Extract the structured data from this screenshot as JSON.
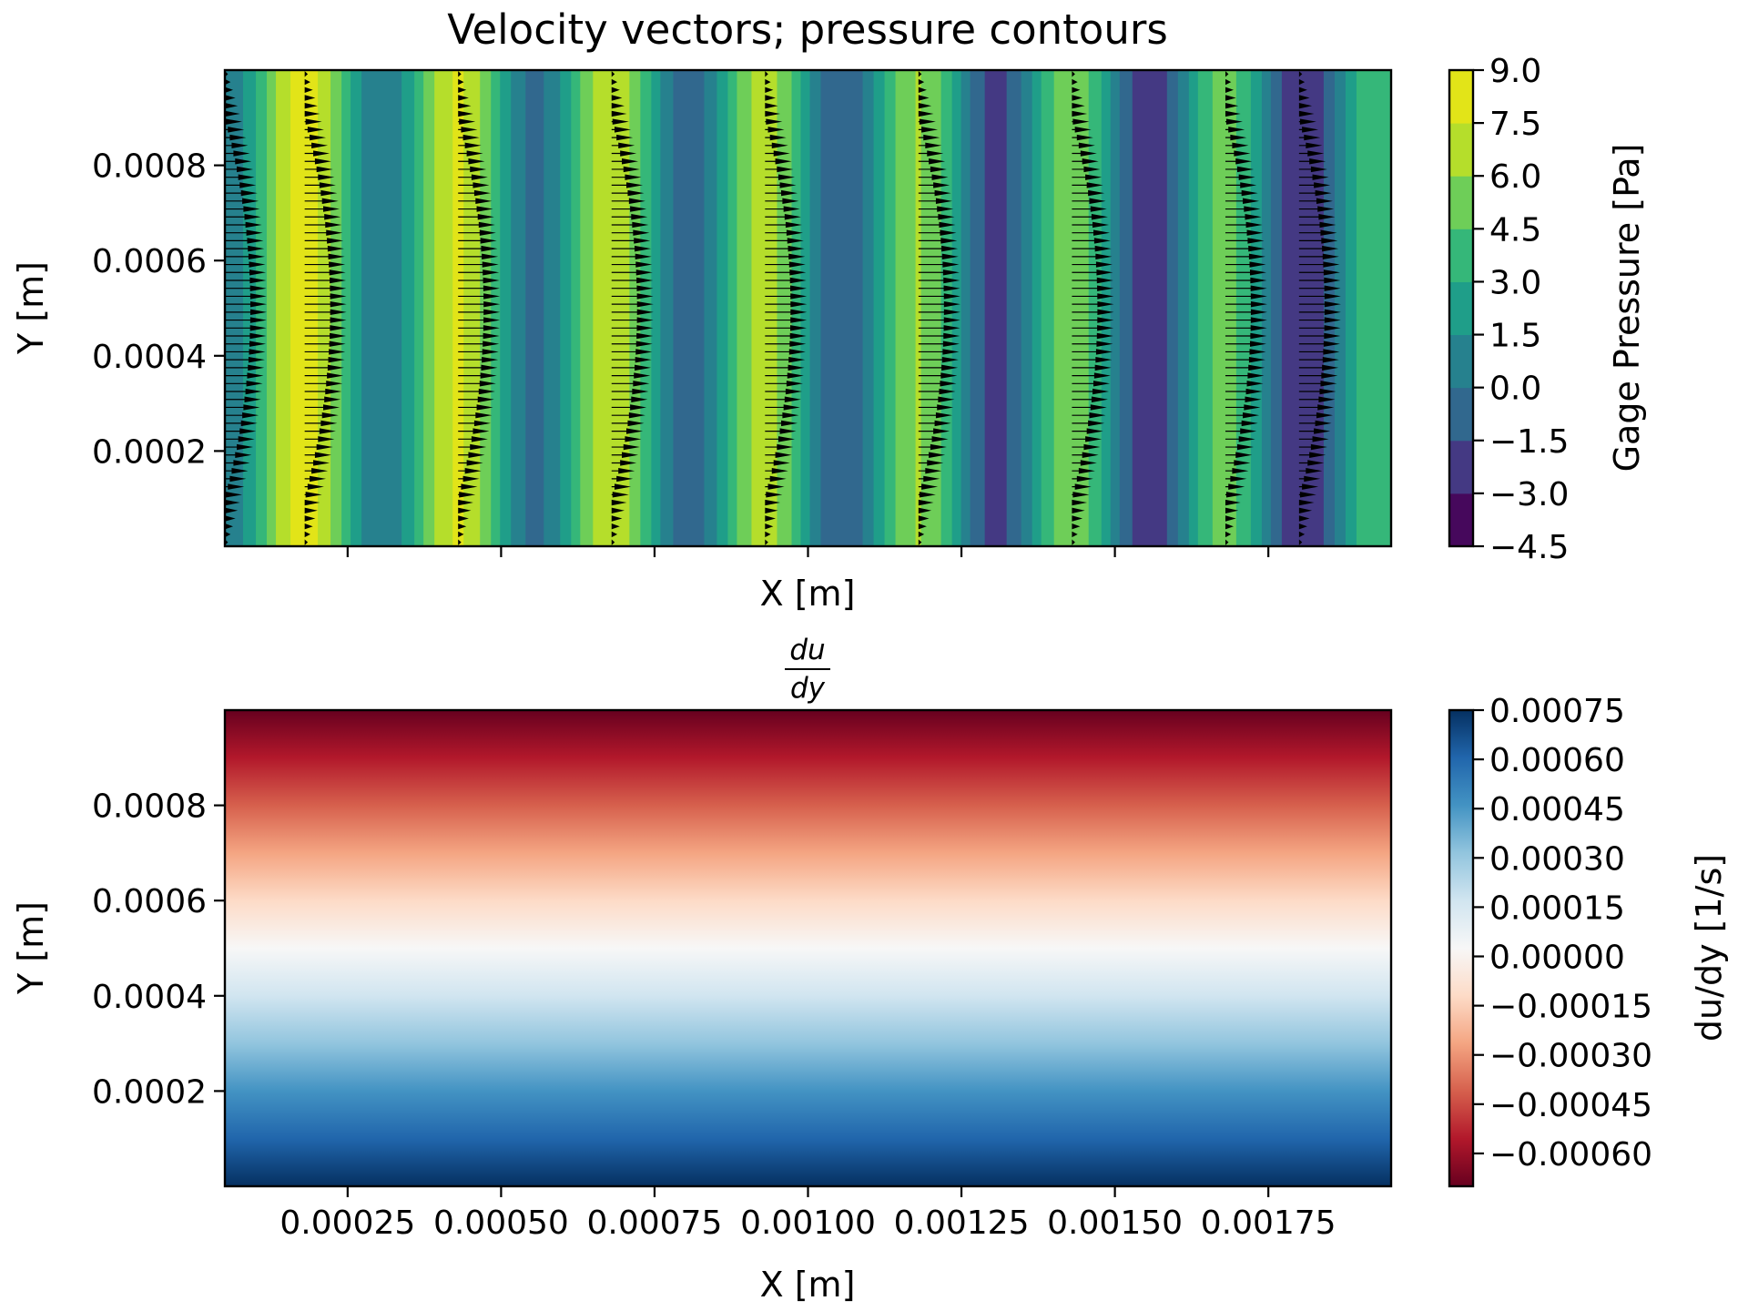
{
  "chart_data": [
    {
      "type": "heatmap",
      "title": "Velocity vectors; pressure contours",
      "xlabel": "X [m]",
      "ylabel": "Y [m]",
      "xlim": [
        5e-05,
        0.00195
      ],
      "ylim": [
        0.0,
        0.001
      ],
      "xticks": [
        0.00025,
        0.0005,
        0.00075,
        0.001,
        0.00125,
        0.0015,
        0.00175
      ],
      "xtick_labels": [
        "",
        "",
        "",
        "",
        "",
        "",
        ""
      ],
      "yticks": [
        0.0002,
        0.0004,
        0.0006,
        0.0008
      ],
      "ytick_labels": [
        "0.0002",
        "0.0004",
        "0.0006",
        "0.0008"
      ],
      "colorbar": {
        "label": "Gage Pressure [Pa]",
        "levels": [
          -4.5,
          -3.0,
          -1.5,
          0.0,
          1.5,
          3.0,
          4.5,
          6.0,
          7.5,
          9.0
        ],
        "tick_labels": [
          "9.0",
          "7.5",
          "6.0",
          "4.5",
          "3.0",
          "1.5",
          "0.0",
          "−1.5",
          "−3.0",
          "−4.5"
        ],
        "colormap": "viridis",
        "colors": [
          "#46085c",
          "#443983",
          "#31688e",
          "#26818e",
          "#1f9e89",
          "#35b779",
          "#6ece58",
          "#b5de2b",
          "#e2e418"
        ]
      },
      "pressure_wave": {
        "description_values": "gage pressure oscillates periodically along x while decreasing overall",
        "period_m": 0.00025,
        "mean_start_pa": 4.6,
        "mean_end_pa": 0.6,
        "amplitude_pa": 3.8
      },
      "vector_columns_x": [
        5e-05,
        0.00018,
        0.00043,
        0.00068,
        0.00093,
        0.00118,
        0.00143,
        0.00168,
        0.0018
      ],
      "vector_rows": 60,
      "profile": "parabolic",
      "vector_color": "#000000"
    },
    {
      "type": "heatmap",
      "title": "du/dy",
      "title_numerator": "du",
      "title_denominator": "dy",
      "xlabel": "X [m]",
      "ylabel": "Y [m]",
      "xlim": [
        5e-05,
        0.00195
      ],
      "ylim": [
        0.0,
        0.001
      ],
      "xticks": [
        0.00025,
        0.0005,
        0.00075,
        0.001,
        0.00125,
        0.0015,
        0.00175
      ],
      "xtick_labels": [
        "0.00025",
        "0.00050",
        "0.00075",
        "0.00100",
        "0.00125",
        "0.00150",
        "0.00175"
      ],
      "yticks": [
        0.0002,
        0.0004,
        0.0006,
        0.0008
      ],
      "ytick_labels": [
        "0.0002",
        "0.0004",
        "0.0006",
        "0.0008"
      ],
      "colorbar": {
        "label": "du/dy [1/s]",
        "range": [
          -0.0007,
          0.00075
        ],
        "ticks": [
          -0.0006,
          -0.00045,
          -0.0003,
          -0.00015,
          0.0,
          0.00015,
          0.0003,
          0.00045,
          0.0006,
          0.00075
        ],
        "tick_labels": [
          "−0.00060",
          "−0.00045",
          "−0.00030",
          "−0.00015",
          "0.00000",
          "0.00015",
          "0.00030",
          "0.00045",
          "0.00060",
          "0.00075"
        ],
        "colormap": "RdBu",
        "colors": [
          "#67001f",
          "#b2182b",
          "#d6604d",
          "#f4a582",
          "#fddbc7",
          "#f7f7f7",
          "#d1e5f0",
          "#92c5de",
          "#4393c3",
          "#2166ac",
          "#053061"
        ]
      },
      "gradient": {
        "at_y_min": 0.0007,
        "at_y_max": -0.0007,
        "zero_at_y": 0.0005
      }
    }
  ]
}
